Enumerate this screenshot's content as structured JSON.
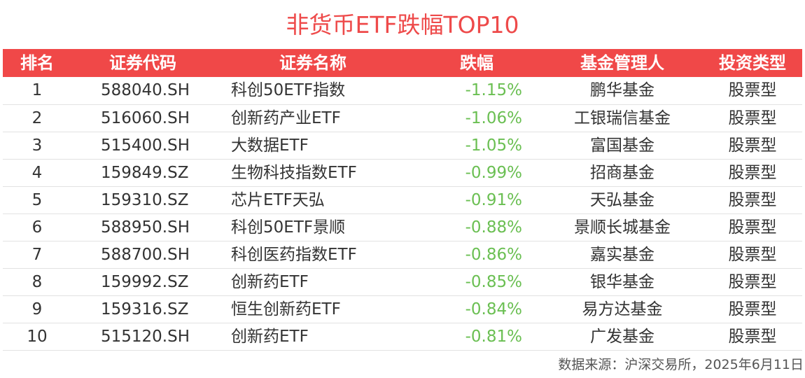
{
  "title": "非货币ETF跌幅TOP10",
  "headers": {
    "rank": "排名",
    "code": "证券代码",
    "name": "证券名称",
    "change": "跌幅",
    "manager": "基金管理人",
    "type": "投资类型"
  },
  "rows": [
    {
      "rank": "1",
      "code": "588040.SH",
      "name": "科创50ETF指数",
      "change": "-1.15%",
      "manager": "鹏华基金",
      "type": "股票型"
    },
    {
      "rank": "2",
      "code": "516060.SH",
      "name": "创新药产业ETF",
      "change": "-1.06%",
      "manager": "工银瑞信基金",
      "type": "股票型"
    },
    {
      "rank": "3",
      "code": "515400.SH",
      "name": "大数据ETF",
      "change": "-1.05%",
      "manager": "富国基金",
      "type": "股票型"
    },
    {
      "rank": "4",
      "code": "159849.SZ",
      "name": "生物科技指数ETF",
      "change": "-0.99%",
      "manager": "招商基金",
      "type": "股票型"
    },
    {
      "rank": "5",
      "code": "159310.SZ",
      "name": "芯片ETF天弘",
      "change": "-0.91%",
      "manager": "天弘基金",
      "type": "股票型"
    },
    {
      "rank": "6",
      "code": "588950.SH",
      "name": "科创50ETF景顺",
      "change": "-0.88%",
      "manager": "景顺长城基金",
      "type": "股票型"
    },
    {
      "rank": "7",
      "code": "588700.SH",
      "name": "科创医药指数ETF",
      "change": "-0.86%",
      "manager": "嘉实基金",
      "type": "股票型"
    },
    {
      "rank": "8",
      "code": "159992.SZ",
      "name": "创新药ETF",
      "change": "-0.85%",
      "manager": "银华基金",
      "type": "股票型"
    },
    {
      "rank": "9",
      "code": "159316.SZ",
      "name": "恒生创新药ETF",
      "change": "-0.84%",
      "manager": "易方达基金",
      "type": "股票型"
    },
    {
      "rank": "10",
      "code": "515120.SH",
      "name": "创新药ETF",
      "change": "-0.81%",
      "manager": "广发基金",
      "type": "股票型"
    }
  ],
  "footer": "数据来源：沪深交易所，2025年6月11日",
  "colors": {
    "title": "#ee4a4a",
    "header_bg": "#f04848",
    "change_text": "#6abf52"
  }
}
